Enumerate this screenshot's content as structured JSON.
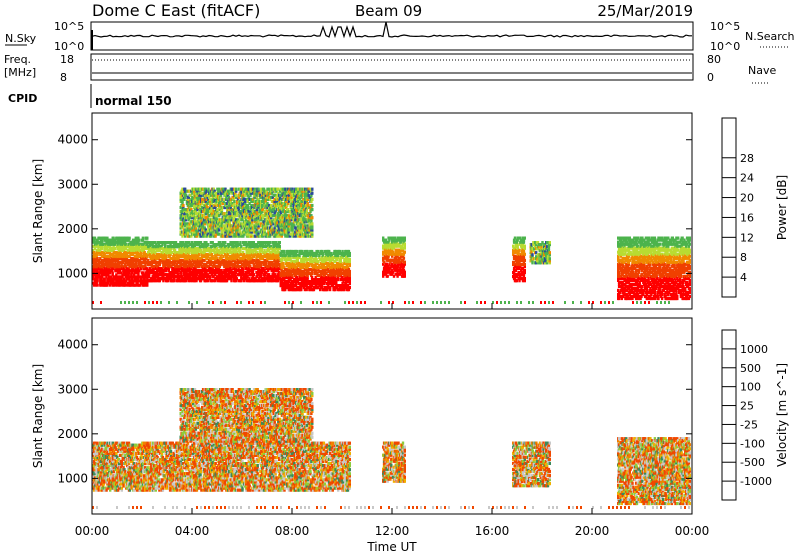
{
  "header": {
    "station": "Dome C East (fitACF)",
    "beam": "Beam 09",
    "date": "25/Mar/2019"
  },
  "status_panels": {
    "nsky_label": "N.Sky",
    "nsky_ticks": [
      "10^5",
      "10^0"
    ],
    "nsearch_label": "N.Search",
    "nsearch_ticks": [
      "10^5",
      "10^0"
    ],
    "freq_label_1": "Freq.",
    "freq_label_2": "[MHz]",
    "freq_ticks": [
      "18",
      "8"
    ],
    "nave_label": "Nave",
    "nave_ticks": [
      "80",
      "0"
    ],
    "cpid_label": "CPID",
    "cpid_value": "normal 150"
  },
  "chart_data": [
    {
      "type": "heatmap",
      "ylabel": "Slant Range [km]",
      "xlabel": "Time UT",
      "x_ticks": [
        "00:00",
        "04:00",
        "08:00",
        "12:00",
        "16:00",
        "20:00",
        "00:00"
      ],
      "y_ticks": [
        1000,
        2000,
        3000,
        4000
      ],
      "ylim": [
        200,
        4600
      ],
      "colorbar": {
        "label": "Power [dB]",
        "ticks": [
          "4",
          "8",
          "12",
          "16",
          "20",
          "24",
          "28"
        ],
        "colors": [
          "#1a1aff",
          "#2a4a9a",
          "#2e7d46",
          "#4db34d",
          "#b8dc32",
          "#f0c000",
          "#f08a00",
          "#f04000",
          "#ff0000"
        ]
      },
      "regions": [
        {
          "t": [
            0.0,
            2.2
          ],
          "r": [
            700,
            1800
          ],
          "level": "high"
        },
        {
          "t": [
            2.2,
            7.5
          ],
          "r": [
            800,
            1700
          ],
          "level": "high"
        },
        {
          "t": [
            7.5,
            10.3
          ],
          "r": [
            600,
            1500
          ],
          "level": "high"
        },
        {
          "t": [
            3.5,
            8.8
          ],
          "r": [
            1800,
            2900
          ],
          "level": "mid"
        },
        {
          "t": [
            11.6,
            12.5
          ],
          "r": [
            900,
            1800
          ],
          "level": "high"
        },
        {
          "t": [
            16.8,
            17.3
          ],
          "r": [
            800,
            1800
          ],
          "level": "high"
        },
        {
          "t": [
            17.5,
            18.3
          ],
          "r": [
            1200,
            1700
          ],
          "level": "mid"
        },
        {
          "t": [
            21.0,
            23.9
          ],
          "r": [
            400,
            1800
          ],
          "level": "high"
        }
      ]
    },
    {
      "type": "heatmap",
      "ylabel": "Slant Range [km]",
      "xlabel": "Time UT",
      "x_ticks": [
        "00:00",
        "04:00",
        "08:00",
        "12:00",
        "16:00",
        "20:00",
        "00:00"
      ],
      "y_ticks": [
        1000,
        2000,
        3000,
        4000
      ],
      "ylim": [
        200,
        4600
      ],
      "colorbar": {
        "label": "Velocity [m s^-1]",
        "ticks": [
          "1000",
          "500",
          "100",
          "25",
          "-25",
          "-100",
          "-500",
          "-1000"
        ],
        "colors": [
          "#2040c0",
          "#3a6a9a",
          "#3a8a5a",
          "#8ccc3c",
          "#c8c8c8",
          "#f0b000",
          "#f08000",
          "#f04800",
          "#ff0000"
        ]
      },
      "regions": [
        {
          "t": [
            0.0,
            10.3
          ],
          "r": [
            700,
            1800
          ],
          "level": "mixed"
        },
        {
          "t": [
            3.5,
            8.8
          ],
          "r": [
            1800,
            3000
          ],
          "level": "mixed"
        },
        {
          "t": [
            11.6,
            12.5
          ],
          "r": [
            900,
            1800
          ],
          "level": "mixed"
        },
        {
          "t": [
            16.8,
            18.3
          ],
          "r": [
            800,
            1800
          ],
          "level": "mixed"
        },
        {
          "t": [
            21.0,
            23.9
          ],
          "r": [
            400,
            1900
          ],
          "level": "mixed"
        }
      ]
    }
  ]
}
